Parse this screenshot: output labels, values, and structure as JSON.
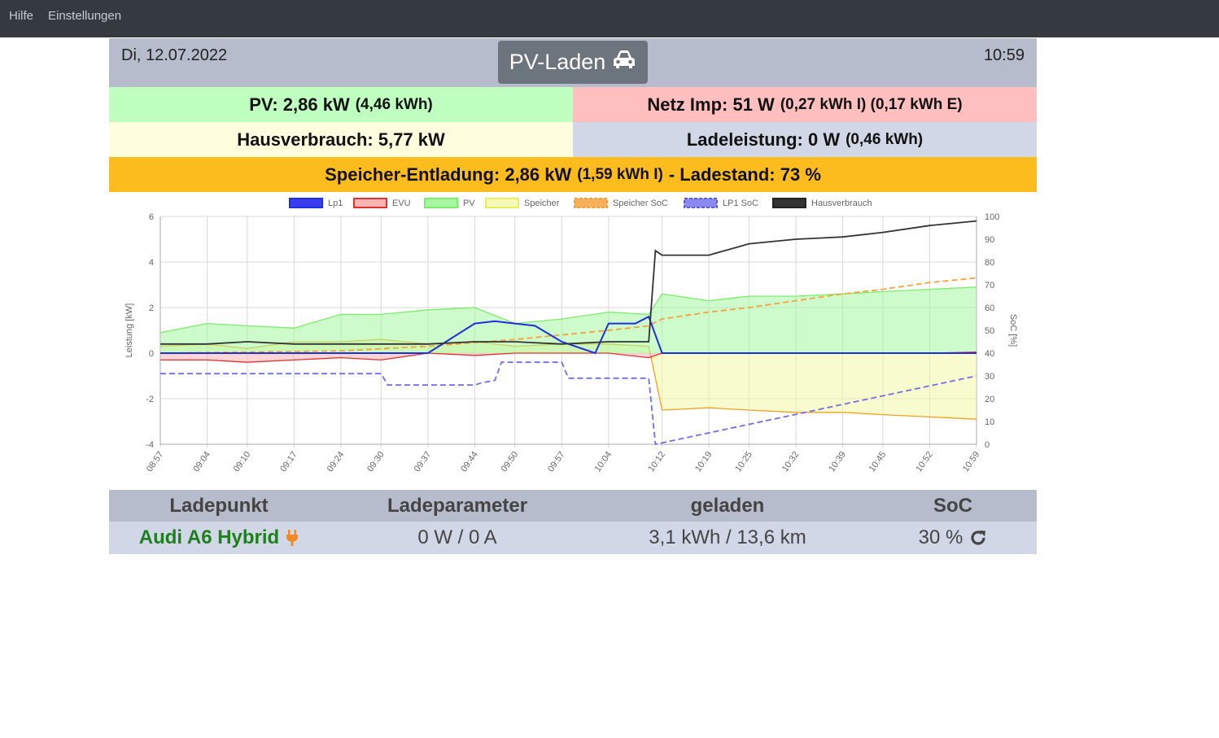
{
  "nav": {
    "items": [
      "Hilfe",
      "Einstellungen"
    ]
  },
  "header": {
    "date": "Di, 12.07.2022",
    "time": "10:59",
    "mode_label": "PV-Laden",
    "mode_icon": "car-icon"
  },
  "tiles": {
    "pv": {
      "label": "PV: 2,86 kW",
      "sub": "(4,46 kWh)",
      "color": "#bfffbf"
    },
    "grid": {
      "label": "Netz Imp: 51 W",
      "sub": "(0,27 kWh I) (0,17 kWh E)",
      "color": "#ffbfbf"
    },
    "house": {
      "label": "Hausverbrauch: 5,77 kW",
      "color": "#fefedf"
    },
    "charge": {
      "label": "Ladeleistung: 0 W",
      "sub": "(0,46 kWh)",
      "color": "#d1d7e6"
    },
    "battery": {
      "label": "Speicher-Entladung: 2,86 kW",
      "sub": "(1,59 kWh I)",
      "label2": "- Ladestand: 73 %",
      "color": "#fcbc1d"
    }
  },
  "chart_data": {
    "type": "line",
    "legend": [
      "Lp1",
      "EVU",
      "PV",
      "Speicher",
      "Speicher SoC",
      "LP1 SoC",
      "Hausverbrauch"
    ],
    "legend_placement": "top",
    "x_ticks": [
      "08:57",
      "09:04",
      "09:10",
      "09:17",
      "09:24",
      "09:30",
      "09:37",
      "09:44",
      "09:50",
      "09:57",
      "10:04",
      "10:12",
      "10:19",
      "10:25",
      "10:32",
      "10:39",
      "10:45",
      "10:52",
      "10:59"
    ],
    "ylabel": "Leistung [kW]",
    "ylim": [
      -4,
      6
    ],
    "y_ticks": [
      6,
      4,
      2,
      0,
      -2,
      -4
    ],
    "y2label": "SoC [%]",
    "y2lim": [
      0,
      100
    ],
    "y2_ticks": [
      100,
      90,
      80,
      70,
      60,
      50,
      40,
      30,
      20,
      10,
      0
    ],
    "grid": true,
    "colors": {
      "Lp1": "#1e2fe0",
      "EVU": "#e03030",
      "PV": "#7cec6c",
      "Speicher": "#e6ef5c",
      "Speicher SoC": "#f6a13a",
      "LP1 SoC": "#6f6fe8",
      "Hausverbrauch": "#333333"
    },
    "series": [
      {
        "name": "PV",
        "x": [
          "08:57",
          "09:04",
          "09:10",
          "09:17",
          "09:24",
          "09:30",
          "09:37",
          "09:44",
          "09:50",
          "09:57",
          "10:04",
          "10:10",
          "10:12",
          "10:19",
          "10:25",
          "10:32",
          "10:39",
          "10:45",
          "10:52",
          "10:59"
        ],
        "values": [
          0.9,
          1.3,
          1.2,
          1.1,
          1.7,
          1.7,
          1.9,
          2.0,
          1.3,
          1.5,
          1.8,
          1.7,
          2.6,
          2.3,
          2.5,
          2.5,
          2.6,
          2.7,
          2.8,
          2.9
        ]
      },
      {
        "name": "Hausverbrauch",
        "x": [
          "08:57",
          "09:04",
          "09:10",
          "09:17",
          "09:24",
          "09:30",
          "09:37",
          "09:44",
          "09:50",
          "09:57",
          "10:04",
          "10:10",
          "10:11",
          "10:12",
          "10:19",
          "10:25",
          "10:32",
          "10:39",
          "10:45",
          "10:52",
          "10:59"
        ],
        "values": [
          0.4,
          0.4,
          0.5,
          0.4,
          0.4,
          0.4,
          0.4,
          0.5,
          0.5,
          0.4,
          0.5,
          0.5,
          4.5,
          4.3,
          4.3,
          4.8,
          5.0,
          5.1,
          5.3,
          5.6,
          5.8
        ]
      },
      {
        "name": "Speicher",
        "x": [
          "08:57",
          "09:04",
          "09:10",
          "09:17",
          "09:24",
          "09:30",
          "09:37",
          "09:44",
          "09:50",
          "09:57",
          "10:04",
          "10:10",
          "10:12",
          "10:19",
          "10:25",
          "10:32",
          "10:39",
          "10:45",
          "10:52",
          "10:59"
        ],
        "values": [
          0.3,
          0.4,
          0.2,
          0.5,
          0.5,
          0.6,
          0.4,
          0.5,
          0.3,
          0.4,
          0.4,
          0.3,
          -2.5,
          -2.4,
          -2.5,
          -2.6,
          -2.6,
          -2.7,
          -2.8,
          -2.9
        ]
      },
      {
        "name": "EVU",
        "x": [
          "08:57",
          "09:04",
          "09:10",
          "09:17",
          "09:24",
          "09:30",
          "09:37",
          "09:44",
          "09:50",
          "09:57",
          "10:04",
          "10:10",
          "10:12",
          "10:19",
          "10:25",
          "10:32",
          "10:39",
          "10:45",
          "10:52",
          "10:59"
        ],
        "values": [
          -0.3,
          -0.3,
          -0.4,
          -0.3,
          -0.2,
          -0.3,
          0.0,
          -0.1,
          0.0,
          0.0,
          0.0,
          -0.2,
          0.0,
          0.0,
          0.0,
          0.0,
          0.0,
          0.0,
          0.0,
          0.05
        ]
      },
      {
        "name": "Lp1",
        "x": [
          "08:57",
          "09:10",
          "09:24",
          "09:37",
          "09:44",
          "09:47",
          "09:50",
          "09:53",
          "09:57",
          "10:02",
          "10:04",
          "10:08",
          "10:10",
          "10:12",
          "10:59"
        ],
        "values": [
          0.0,
          0.0,
          0.0,
          0.0,
          1.3,
          1.4,
          1.3,
          1.2,
          0.5,
          0.0,
          1.3,
          1.3,
          1.6,
          0.0,
          0.0
        ]
      },
      {
        "name": "Speicher SoC",
        "x": [
          "08:57",
          "09:24",
          "09:37",
          "09:50",
          "10:04",
          "10:10",
          "10:12",
          "10:19",
          "10:25",
          "10:32",
          "10:39",
          "10:45",
          "10:52",
          "10:59"
        ],
        "values": [
          40,
          41,
          43,
          46,
          50,
          52,
          55,
          58,
          60,
          63,
          66,
          68,
          71,
          73
        ]
      },
      {
        "name": "LP1 SoC",
        "x": [
          "08:57",
          "09:30",
          "09:31",
          "09:44",
          "09:45",
          "09:47",
          "09:48",
          "09:57",
          "09:58",
          "10:07",
          "10:08",
          "10:10",
          "10:11",
          "10:59"
        ],
        "values": [
          31,
          31,
          26,
          26,
          27,
          28,
          36,
          36,
          29,
          29,
          29,
          29,
          0,
          30
        ]
      }
    ]
  },
  "table": {
    "headers": [
      "Ladepunkt",
      "Ladeparameter",
      "geladen",
      "SoC"
    ],
    "row": {
      "name": "Audi A6 Hybrid",
      "plug_icon": "plug-icon",
      "params": "0 W / 0 A",
      "charged": "3,1 kWh / 13,6 km",
      "soc": "30 %",
      "refresh_icon": "refresh-icon"
    }
  }
}
